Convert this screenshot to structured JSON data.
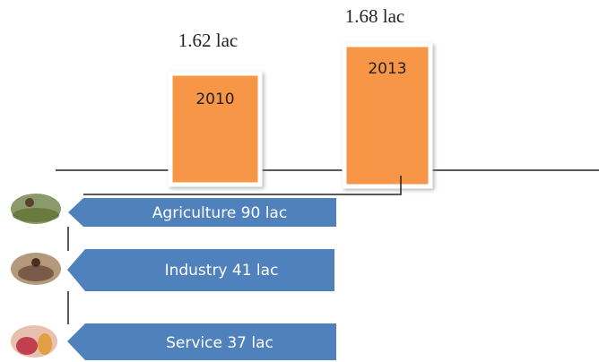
{
  "years": [
    {
      "label": "2010",
      "amount": "1.62 lac"
    },
    {
      "label": "2013",
      "amount": "1.68 lac"
    }
  ],
  "sectors": [
    "Agriculture 90 lac",
    "Industry 41 lac",
    "Service 37 lac"
  ]
}
